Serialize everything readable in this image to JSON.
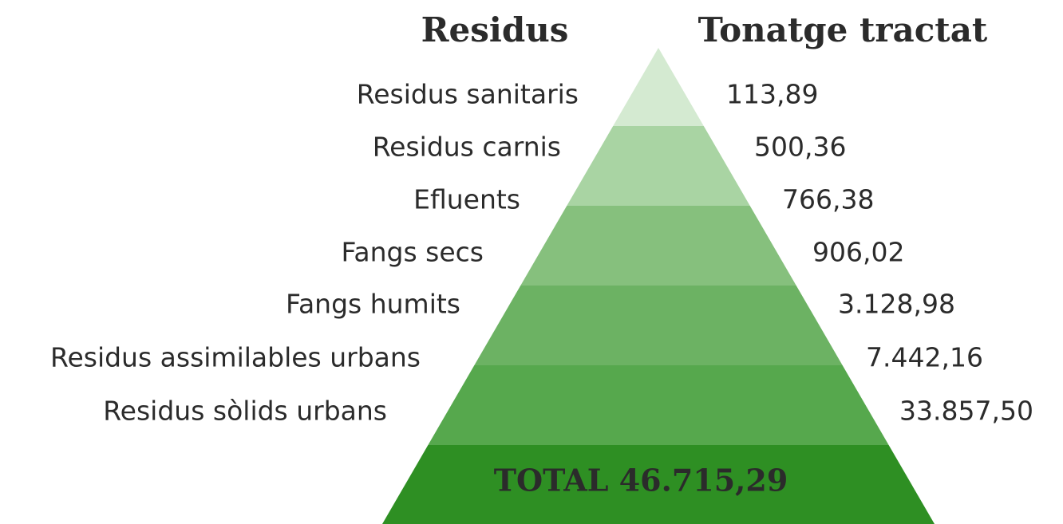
{
  "headers": {
    "left": "Residus",
    "right": "Tonatge tractat"
  },
  "rows": [
    {
      "label": "Residus sanitaris",
      "value": "113,89"
    },
    {
      "label": "Residus carnis",
      "value": "500,36"
    },
    {
      "label": "Efluents",
      "value": "766,38"
    },
    {
      "label": "Fangs secs",
      "value": "906,02"
    },
    {
      "label": "Fangs humits",
      "value": "3.128,98"
    },
    {
      "label": "Residus assimilables urbans",
      "value": "7.442,16"
    },
    {
      "label": "Residus sòlids urbans",
      "value": "33.857,50"
    }
  ],
  "total": "TOTAL 46.715,29"
}
